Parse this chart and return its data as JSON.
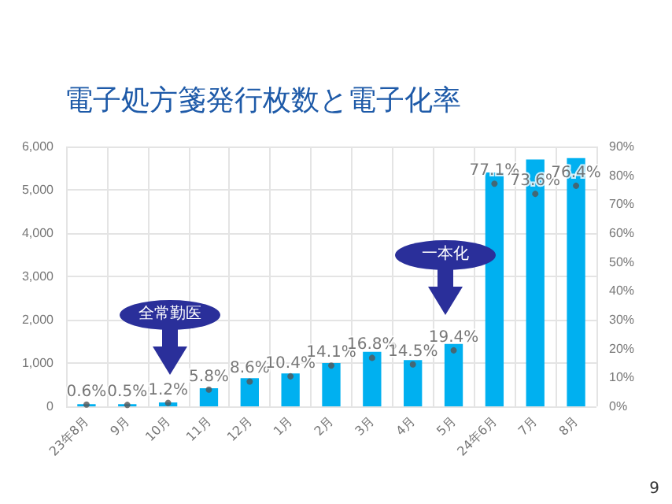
{
  "chart_data": {
    "type": "bar",
    "title": "電子処方箋発行枚数と電子化率",
    "categories": [
      "23年8月",
      "9月",
      "10月",
      "11月",
      "12月",
      "1月",
      "2月",
      "3月",
      "4月",
      "5月",
      "24年6月",
      "7月",
      "8月"
    ],
    "series": [
      {
        "color": "#00b0f0",
        "values": [
          50,
          50,
          90,
          420,
          650,
          760,
          1000,
          1260,
          1070,
          1440,
          5400,
          5700,
          5730
        ]
      },
      {
        "type": "scatter",
        "axis": "y2",
        "color": "#555555",
        "marker": "circle",
        "values": [
          0.6,
          0.5,
          1.2,
          5.8,
          8.6,
          10.4,
          14.1,
          16.8,
          14.5,
          19.4,
          77.1,
          73.6,
          76.4
        ],
        "value_labels": [
          "0.6%",
          "0.5%",
          "1.2%",
          "5.8%",
          "8.6%",
          "10.4%",
          "14.1%",
          "16.8%",
          "14.5%",
          "19.4%",
          "77.1%",
          "73.6%",
          "76.4%"
        ]
      }
    ],
    "ylim": [
      0,
      6000
    ],
    "yticks": [
      0,
      {
        "value": 1000,
        "label": "1,000"
      },
      {
        "value": 2000,
        "label": "2,000"
      },
      {
        "value": 3000,
        "label": "3,000"
      },
      {
        "value": 4000,
        "label": "4,000"
      },
      {
        "value": 5000,
        "label": "5,000"
      },
      {
        "value": 6000,
        "label": "6,000"
      }
    ],
    "y2lim": [
      0,
      90
    ],
    "y2ticks": [
      {
        "value": 0,
        "label": "0%"
      },
      {
        "value": 10,
        "label": "10%"
      },
      {
        "value": 20,
        "label": "20%"
      },
      {
        "value": 30,
        "label": "30%"
      },
      {
        "value": 40,
        "label": "40%"
      },
      {
        "value": 50,
        "label": "50%"
      },
      {
        "value": 60,
        "label": "60%"
      },
      {
        "value": 70,
        "label": "70%"
      },
      {
        "value": 80,
        "label": "80%"
      },
      {
        "value": 90,
        "label": "90%"
      }
    ],
    "grid": true,
    "annotations": [
      "全常勤医",
      "一本化",
      "9"
    ]
  }
}
